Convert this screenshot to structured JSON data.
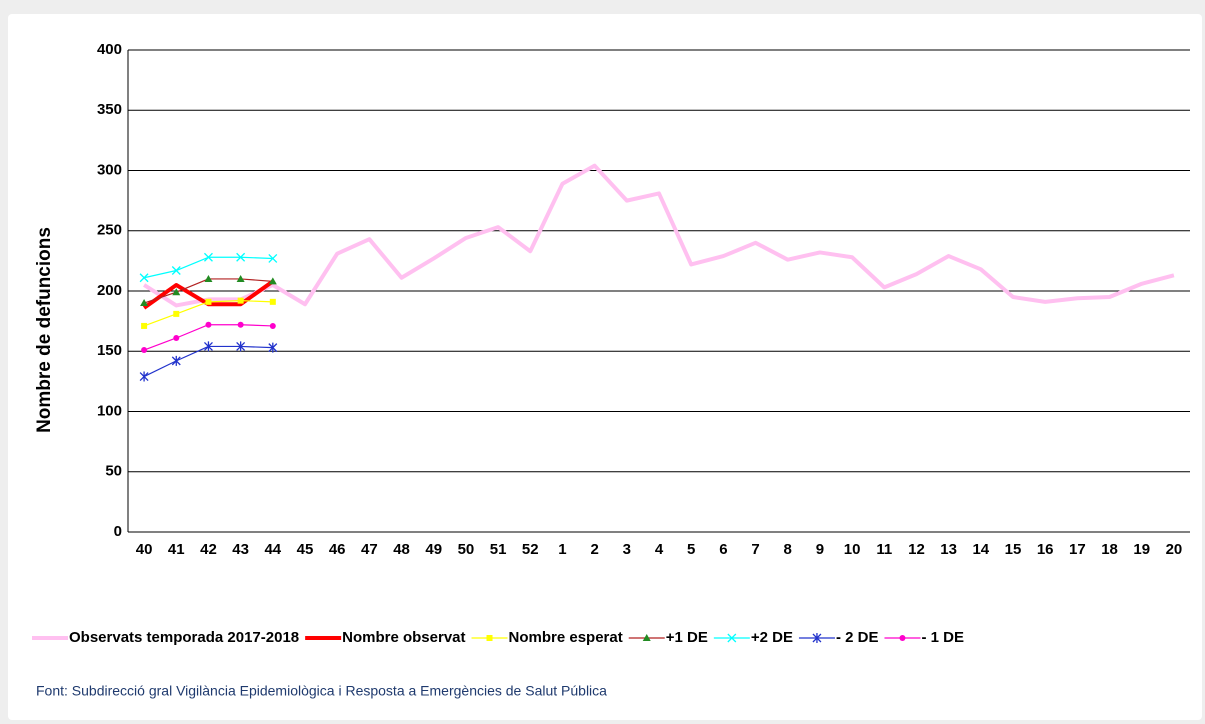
{
  "chart_data": {
    "type": "line",
    "ylabel": "Nombre de defuncions",
    "source": "Font:  Subdirecció gral Vigilància  Epidemiològica  i Resposta a Emergències de Salut Pública",
    "categories": [
      "40",
      "41",
      "42",
      "43",
      "44",
      "45",
      "46",
      "47",
      "48",
      "49",
      "50",
      "51",
      "52",
      "1",
      "2",
      "3",
      "4",
      "5",
      "6",
      "7",
      "8",
      "9",
      "10",
      "11",
      "12",
      "13",
      "14",
      "15",
      "16",
      "17",
      "18",
      "19",
      "20"
    ],
    "ylim": [
      0,
      400
    ],
    "yticks": [
      0,
      50,
      100,
      150,
      200,
      250,
      300,
      350,
      400
    ],
    "grid": true,
    "series": [
      {
        "name": "Observats temporada 2017-2018",
        "color": "#ffc0f0",
        "width": 4,
        "marker": "none",
        "values": [
          205,
          188,
          193,
          193,
          205,
          189,
          231,
          243,
          211,
          227,
          244,
          253,
          233,
          289,
          304,
          275,
          281,
          222,
          229,
          240,
          226,
          232,
          228,
          203,
          214,
          229,
          218,
          195,
          191,
          194,
          195,
          206,
          213
        ]
      },
      {
        "name": "Nombre observat",
        "color": "#ff0000",
        "width": 4,
        "marker": "none",
        "values": [
          186,
          205,
          189,
          189,
          208,
          null,
          null,
          null,
          null,
          null,
          null,
          null,
          null,
          null,
          null,
          null,
          null,
          null,
          null,
          null,
          null,
          null,
          null,
          null,
          null,
          null,
          null,
          null,
          null,
          null,
          null,
          null,
          null
        ]
      },
      {
        "name": "Nombre esperat",
        "color": "#ffff00",
        "width": 1.2,
        "marker": "square",
        "values": [
          171,
          181,
          191,
          192,
          191,
          null,
          null,
          null,
          null,
          null,
          null,
          null,
          null,
          null,
          null,
          null,
          null,
          null,
          null,
          null,
          null,
          null,
          null,
          null,
          null,
          null,
          null,
          null,
          null,
          null,
          null,
          null,
          null
        ]
      },
      {
        "name": "+1 DE",
        "color": "#b22222",
        "markercolor": "#228b22",
        "width": 1.2,
        "marker": "triangle",
        "values": [
          190,
          199,
          210,
          210,
          208,
          null,
          null,
          null,
          null,
          null,
          null,
          null,
          null,
          null,
          null,
          null,
          null,
          null,
          null,
          null,
          null,
          null,
          null,
          null,
          null,
          null,
          null,
          null,
          null,
          null,
          null,
          null,
          null
        ]
      },
      {
        "name": "+2 DE",
        "color": "#00ffff",
        "width": 1.2,
        "marker": "x",
        "values": [
          211,
          217,
          228,
          228,
          227,
          null,
          null,
          null,
          null,
          null,
          null,
          null,
          null,
          null,
          null,
          null,
          null,
          null,
          null,
          null,
          null,
          null,
          null,
          null,
          null,
          null,
          null,
          null,
          null,
          null,
          null,
          null,
          null
        ]
      },
      {
        "name": "- 2 DE",
        "color": "#2233cc",
        "width": 1.2,
        "marker": "star",
        "values": [
          129,
          142,
          154,
          154,
          153,
          null,
          null,
          null,
          null,
          null,
          null,
          null,
          null,
          null,
          null,
          null,
          null,
          null,
          null,
          null,
          null,
          null,
          null,
          null,
          null,
          null,
          null,
          null,
          null,
          null,
          null,
          null,
          null
        ]
      },
      {
        "name": "- 1 DE",
        "color": "#ff00cc",
        "width": 1.2,
        "marker": "dot",
        "values": [
          151,
          161,
          172,
          172,
          171,
          null,
          null,
          null,
          null,
          null,
          null,
          null,
          null,
          null,
          null,
          null,
          null,
          null,
          null,
          null,
          null,
          null,
          null,
          null,
          null,
          null,
          null,
          null,
          null,
          null,
          null,
          null,
          null
        ]
      }
    ]
  }
}
